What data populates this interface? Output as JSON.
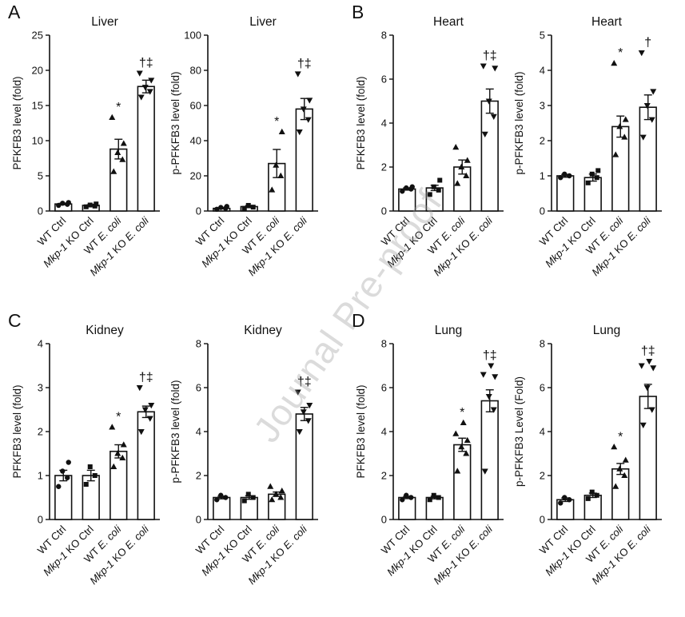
{
  "watermark": "Journal Pre-proof",
  "panels": [
    {
      "letter": "A"
    },
    {
      "letter": "B"
    },
    {
      "letter": "C"
    },
    {
      "letter": "D"
    }
  ],
  "marker_shapes": [
    "circle",
    "square",
    "triangle-up",
    "triangle-down"
  ],
  "x_label_segments": [
    [
      {
        "text": "WT Ctrl",
        "italic": false
      }
    ],
    [
      {
        "text": "Mkp-1",
        "italic": true
      },
      {
        "text": " KO Ctrl",
        "italic": false
      }
    ],
    [
      {
        "text": "WT ",
        "italic": false
      },
      {
        "text": "E. coli",
        "italic": true
      }
    ],
    [
      {
        "text": "Mkp-1",
        "italic": true
      },
      {
        "text": " KO ",
        "italic": false
      },
      {
        "text": "E. coli",
        "italic": true
      }
    ]
  ],
  "chart_data": [
    {
      "type": "bar",
      "panel": "A",
      "title": "Liver",
      "ylabel": "PFKFB3 level (fold)",
      "ylim": [
        0,
        25
      ],
      "yticks": [
        0,
        5,
        10,
        15,
        20,
        25
      ],
      "categories": [
        "WT Ctrl",
        "Mkp-1 KO Ctrl",
        "WT E. coli",
        "Mkp-1 KO E. coli"
      ],
      "values": [
        1.0,
        0.8,
        8.8,
        17.7
      ],
      "sem": [
        0.1,
        0.1,
        1.4,
        0.9
      ],
      "sig": [
        "",
        "",
        "*",
        "†‡"
      ],
      "points": [
        [
          0.8,
          0.95,
          1.1,
          1.2
        ],
        [
          0.6,
          0.7,
          0.85,
          1.0
        ],
        [
          5.6,
          7.3,
          8.3,
          9.6,
          13.3
        ],
        [
          16.2,
          17.0,
          17.6,
          18.6,
          19.6
        ]
      ]
    },
    {
      "type": "bar",
      "panel": "A",
      "title": "Liver",
      "ylabel": "p-PFKFB3 level (fold)",
      "ylim": [
        0,
        100
      ],
      "yticks": [
        0,
        20,
        40,
        60,
        80,
        100
      ],
      "categories": [
        "WT Ctrl",
        "Mkp-1 KO Ctrl",
        "WT E. coli",
        "Mkp-1 KO E. coli"
      ],
      "values": [
        1.5,
        2.5,
        27,
        58
      ],
      "sem": [
        0.3,
        0.6,
        8,
        6
      ],
      "sig": [
        "",
        "",
        "*",
        "†‡"
      ],
      "points": [
        [
          1.0,
          1.5,
          2.0,
          2.6
        ],
        [
          1.5,
          2.2,
          3.2
        ],
        [
          12,
          20,
          26,
          45
        ],
        [
          45,
          52,
          58,
          63,
          78
        ]
      ]
    },
    {
      "type": "bar",
      "panel": "B",
      "title": "Heart",
      "ylabel": "PFKFB3 level (fold)",
      "ylim": [
        0,
        8
      ],
      "yticks": [
        0,
        2,
        4,
        6,
        8
      ],
      "categories": [
        "WT Ctrl",
        "Mkp-1 KO Ctrl",
        "WT E. coli",
        "Mkp-1 KO E. coli"
      ],
      "values": [
        1.0,
        1.05,
        2.0,
        5.0
      ],
      "sem": [
        0.05,
        0.12,
        0.32,
        0.55
      ],
      "sig": [
        "",
        "",
        "",
        "†‡"
      ],
      "points": [
        [
          0.9,
          1.0,
          1.05,
          1.1
        ],
        [
          0.75,
          0.95,
          1.1,
          1.4
        ],
        [
          1.25,
          1.6,
          2.0,
          2.3,
          2.9
        ],
        [
          3.5,
          4.3,
          5.0,
          6.5,
          6.6
        ]
      ]
    },
    {
      "type": "bar",
      "panel": "B",
      "title": "Heart",
      "ylabel": "p-PFKFB3 level (fold)",
      "ylim": [
        0,
        5
      ],
      "yticks": [
        0,
        1,
        2,
        3,
        4,
        5
      ],
      "categories": [
        "WT Ctrl",
        "Mkp-1 KO Ctrl",
        "WT E. coli",
        "Mkp-1 KO E. coli"
      ],
      "values": [
        1.0,
        0.95,
        2.4,
        2.95
      ],
      "sem": [
        0.04,
        0.1,
        0.3,
        0.35
      ],
      "sig": [
        "",
        "",
        "*",
        "†"
      ],
      "points": [
        [
          0.95,
          1.0,
          1.05
        ],
        [
          0.8,
          0.95,
          1.05,
          1.15
        ],
        [
          1.6,
          2.1,
          2.4,
          2.6,
          4.2
        ],
        [
          2.1,
          2.6,
          3.0,
          3.4,
          4.5
        ]
      ]
    },
    {
      "type": "bar",
      "panel": "C",
      "title": "Kidney",
      "ylabel": "PFKFB3 level (fold)",
      "ylim": [
        0,
        4
      ],
      "yticks": [
        0,
        1,
        2,
        3,
        4
      ],
      "categories": [
        "WT Ctrl",
        "Mkp-1 KO Ctrl",
        "WT E. coli",
        "Mkp-1 KO E. coli"
      ],
      "values": [
        1.0,
        1.0,
        1.55,
        2.45
      ],
      "sem": [
        0.12,
        0.12,
        0.15,
        0.13
      ],
      "sig": [
        "",
        "",
        "*",
        "†‡"
      ],
      "points": [
        [
          0.75,
          0.95,
          1.1,
          1.3
        ],
        [
          0.8,
          1.0,
          1.2
        ],
        [
          1.2,
          1.4,
          1.5,
          1.7,
          2.1
        ],
        [
          2.0,
          2.3,
          2.5,
          2.6,
          3.0
        ]
      ]
    },
    {
      "type": "bar",
      "panel": "C",
      "title": "Kidney",
      "ylabel": "p-PFKFB3 level (fold)",
      "ylim": [
        0,
        8
      ],
      "yticks": [
        0,
        2,
        4,
        6,
        8
      ],
      "categories": [
        "WT Ctrl",
        "Mkp-1 KO Ctrl",
        "WT E. coli",
        "Mkp-1 KO E. coli"
      ],
      "values": [
        1.0,
        1.0,
        1.15,
        4.8
      ],
      "sem": [
        0.06,
        0.08,
        0.1,
        0.3
      ],
      "sig": [
        "",
        "",
        "",
        "†‡"
      ],
      "points": [
        [
          0.9,
          1.0,
          1.1
        ],
        [
          0.85,
          1.0,
          1.15
        ],
        [
          0.9,
          1.0,
          1.15,
          1.3,
          1.5
        ],
        [
          4.0,
          4.5,
          4.9,
          5.2,
          5.8
        ]
      ]
    },
    {
      "type": "bar",
      "panel": "D",
      "title": "Lung",
      "ylabel": "PFKFB3 level (fold)",
      "ylim": [
        0,
        8
      ],
      "yticks": [
        0,
        2,
        4,
        6,
        8
      ],
      "categories": [
        "WT Ctrl",
        "Mkp-1 KO Ctrl",
        "WT E. coli",
        "Mkp-1 KO E. coli"
      ],
      "values": [
        1.0,
        1.0,
        3.4,
        5.4
      ],
      "sem": [
        0.05,
        0.06,
        0.3,
        0.5
      ],
      "sig": [
        "",
        "",
        "*",
        "†‡"
      ],
      "points": [
        [
          0.9,
          1.0,
          1.1
        ],
        [
          0.9,
          1.0,
          1.1
        ],
        [
          2.2,
          3.0,
          3.3,
          3.6,
          3.9,
          4.4
        ],
        [
          2.2,
          5.0,
          5.6,
          6.5,
          6.6,
          7.0
        ]
      ]
    },
    {
      "type": "bar",
      "panel": "D",
      "title": "Lung",
      "ylabel": "p-PFKFB3 Level (Fold)",
      "ylim": [
        0,
        8
      ],
      "yticks": [
        0,
        2,
        4,
        6,
        8
      ],
      "categories": [
        "WT Ctrl",
        "Mkp-1 KO Ctrl",
        "WT E. coli",
        "Mkp-1 KO E. coli"
      ],
      "values": [
        0.9,
        1.1,
        2.3,
        5.6
      ],
      "sem": [
        0.08,
        0.1,
        0.25,
        0.55
      ],
      "sig": [
        "",
        "",
        "*",
        "†‡"
      ],
      "points": [
        [
          0.75,
          0.9,
          1.0
        ],
        [
          0.95,
          1.1,
          1.25
        ],
        [
          1.5,
          2.0,
          2.3,
          2.7,
          3.3
        ],
        [
          4.3,
          5.0,
          6.0,
          6.9,
          7.0,
          7.2
        ]
      ]
    }
  ]
}
